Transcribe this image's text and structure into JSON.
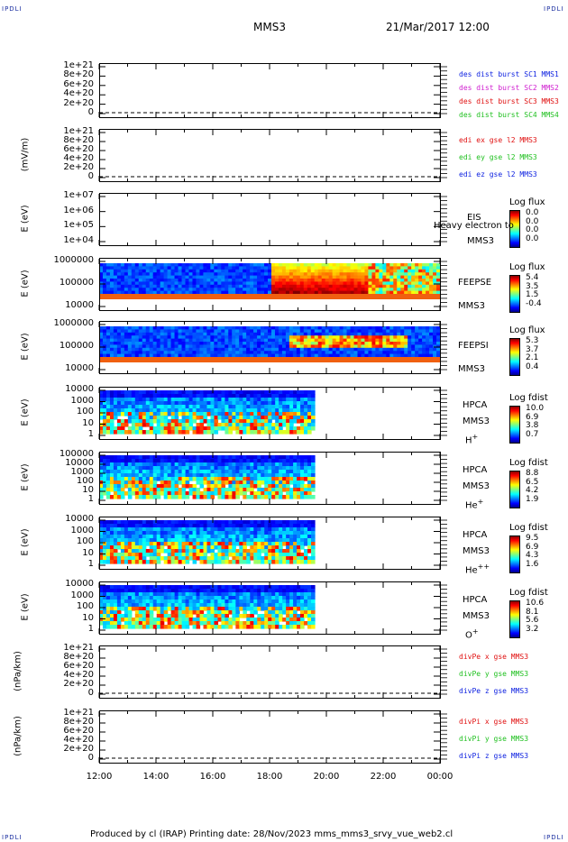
{
  "header": {
    "corner_left": "IPDLI",
    "corner_right": "IPDLI",
    "spacecraft": "MMS3",
    "datetime": "21/Mar/2017 12:00"
  },
  "footer": {
    "corner_left": "IPDLI",
    "corner_right": "IPDLI",
    "text": "Produced by cl (IRAP)   Printing date: 28/Nov/2023   mms_mms3_srvy_vue_web2.cl"
  },
  "colors": {
    "blue": "#0a1ee0",
    "magenta": "#d020d0",
    "red": "#e01010",
    "green": "#20c020"
  },
  "chart_data": [
    {
      "type": "line",
      "panel": "des",
      "ylabel": "",
      "yticks": [
        "1e+21",
        "8e+20",
        "6e+20",
        "4e+20",
        "2e+20",
        "0"
      ],
      "legend": [
        {
          "text": "des dist burst SC1 MMS1",
          "color": "blue"
        },
        {
          "text": "des dist burst SC2 MMS2",
          "color": "magenta"
        },
        {
          "text": "des dist burst SC3 MMS3",
          "color": "red"
        },
        {
          "text": "des dist burst SC4 MMS4",
          "color": "green"
        }
      ]
    },
    {
      "type": "line",
      "panel": "edi",
      "ylabel": "(mV/m)",
      "yticks": [
        "1e+21",
        "8e+20",
        "6e+20",
        "4e+20",
        "2e+20",
        "0"
      ],
      "legend": [
        {
          "text": "edi ex gse l2 MMS3",
          "color": "red"
        },
        {
          "text": "edi ey gse l2 MMS3",
          "color": "green"
        },
        {
          "text": "edi ez gse l2 MMS3",
          "color": "blue"
        }
      ]
    },
    {
      "type": "heatmap",
      "panel": "eis",
      "ylabel": "E (eV)",
      "yticks": [
        "1e+07",
        "1e+06",
        "1e+05",
        "1e+04"
      ],
      "side": [
        "EIS",
        "MMS3"
      ],
      "overlap": "Heavy electron to",
      "cbar_title": "Log flux",
      "cbar_values": [
        "0.0",
        "0.0",
        "0.0",
        "0.0"
      ]
    },
    {
      "type": "heatmap",
      "panel": "feepse",
      "ylabel": "E (eV)",
      "yticks": [
        "1000000",
        "100000",
        "10000"
      ],
      "side": [
        "FEEPSE",
        "MMS3"
      ],
      "cbar_title": "Log flux",
      "cbar_values": [
        "5.4",
        "3.5",
        "1.5",
        "-0.4"
      ]
    },
    {
      "type": "heatmap",
      "panel": "feepsi",
      "ylabel": "E (eV)",
      "yticks": [
        "1000000",
        "100000",
        "10000"
      ],
      "side": [
        "FEEPSI",
        "MMS3"
      ],
      "cbar_title": "Log flux",
      "cbar_values": [
        "5.3",
        "3.7",
        "2.1",
        "0.4"
      ]
    },
    {
      "type": "heatmap",
      "panel": "hpca_h",
      "ylabel": "E (eV)",
      "yticks": [
        "10000",
        "1000",
        "100",
        "10",
        "1"
      ],
      "side": [
        "HPCA",
        "MMS3"
      ],
      "species": "H",
      "species_sup": "+",
      "cbar_title": "Log fdist",
      "cbar_values": [
        "10.0",
        "6.9",
        "3.8",
        "0.7"
      ]
    },
    {
      "type": "heatmap",
      "panel": "hpca_he",
      "ylabel": "E (eV)",
      "yticks": [
        "100000",
        "10000",
        "1000",
        "100",
        "10",
        "1"
      ],
      "side": [
        "HPCA",
        "MMS3"
      ],
      "species": "He",
      "species_sup": "+",
      "cbar_title": "Log fdist",
      "cbar_values": [
        "8.8",
        "6.5",
        "4.2",
        "1.9"
      ]
    },
    {
      "type": "heatmap",
      "panel": "hpca_hepp",
      "ylabel": "E (eV)",
      "yticks": [
        "10000",
        "1000",
        "100",
        "10",
        "1"
      ],
      "side": [
        "HPCA",
        "MMS3"
      ],
      "species": "He",
      "species_sup": "++",
      "cbar_title": "Log fdist",
      "cbar_values": [
        "9.5",
        "6.9",
        "4.3",
        "1.6"
      ]
    },
    {
      "type": "heatmap",
      "panel": "hpca_o",
      "ylabel": "E (eV)",
      "yticks": [
        "10000",
        "1000",
        "100",
        "10",
        "1"
      ],
      "side": [
        "HPCA",
        "MMS3"
      ],
      "species": "O",
      "species_sup": "+",
      "cbar_title": "Log fdist",
      "cbar_values": [
        "10.6",
        "8.1",
        "5.6",
        "3.2"
      ]
    },
    {
      "type": "line",
      "panel": "divpe",
      "ylabel": "(nPa/km)",
      "yticks": [
        "1e+21",
        "8e+20",
        "6e+20",
        "4e+20",
        "2e+20",
        "0"
      ],
      "legend": [
        {
          "text": "divPe x gse MMS3",
          "color": "red"
        },
        {
          "text": "divPe y gse MMS3",
          "color": "green"
        },
        {
          "text": "divPe z gse MMS3",
          "color": "blue"
        }
      ]
    },
    {
      "type": "line",
      "panel": "divpi",
      "ylabel": "(nPa/km)",
      "yticks": [
        "1e+21",
        "8e+20",
        "6e+20",
        "4e+20",
        "2e+20",
        "0"
      ],
      "legend": [
        {
          "text": "divPi x gse MMS3",
          "color": "red"
        },
        {
          "text": "divPi y gse MMS3",
          "color": "green"
        },
        {
          "text": "divPi z gse MMS3",
          "color": "blue"
        }
      ]
    }
  ],
  "xaxis": {
    "ticks": [
      "12:00",
      "14:00",
      "16:00",
      "18:00",
      "20:00",
      "22:00",
      "00:00"
    ]
  }
}
